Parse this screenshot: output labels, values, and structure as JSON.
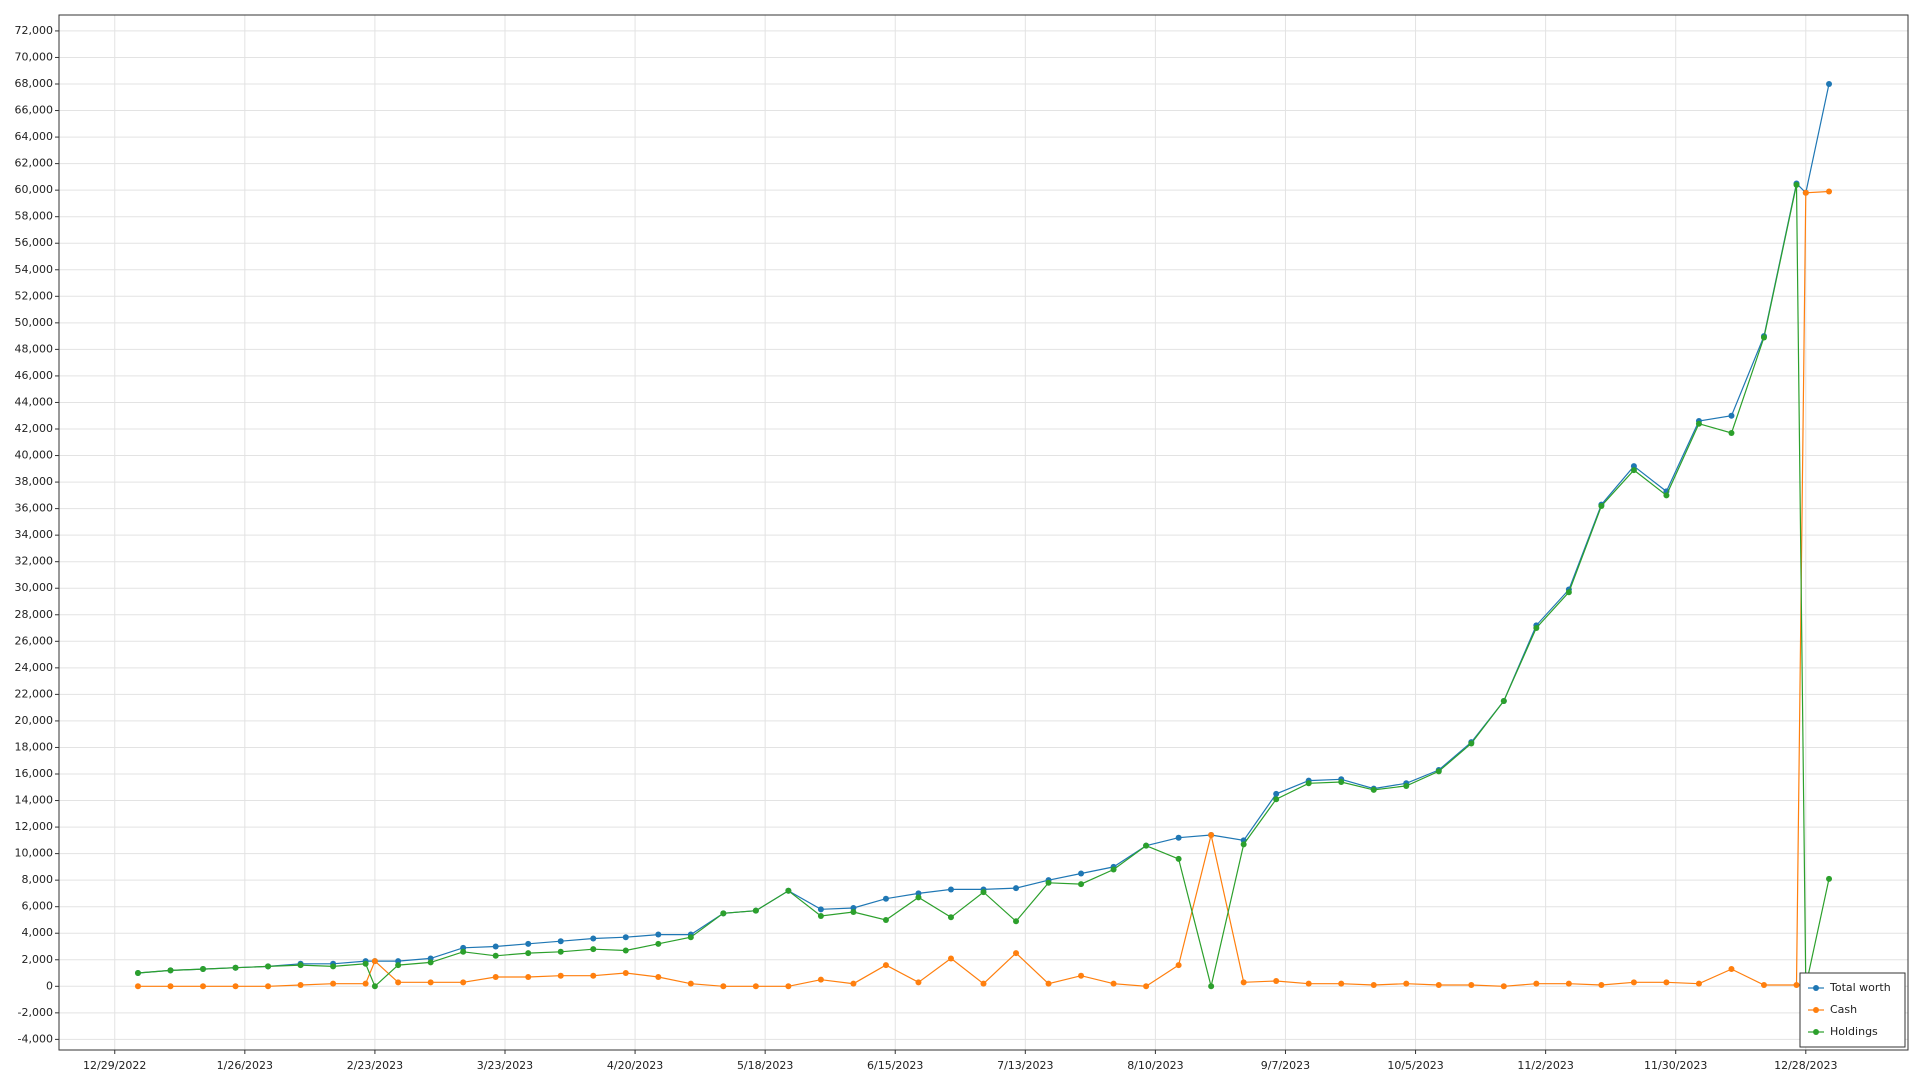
{
  "chart_data": {
    "type": "line",
    "x": [
      "1/3/2023",
      "1/10/2023",
      "1/17/2023",
      "1/24/2023",
      "1/31/2023",
      "2/7/2023",
      "2/14/2023",
      "2/21/2023",
      "2/23/2023",
      "2/28/2023",
      "3/7/2023",
      "3/14/2023",
      "3/21/2023",
      "3/28/2023",
      "4/4/2023",
      "4/11/2023",
      "4/18/2023",
      "4/25/2023",
      "5/2/2023",
      "5/9/2023",
      "5/16/2023",
      "5/23/2023",
      "5/30/2023",
      "6/6/2023",
      "6/13/2023",
      "6/20/2023",
      "6/27/2023",
      "7/4/2023",
      "7/11/2023",
      "7/18/2023",
      "7/25/2023",
      "8/1/2023",
      "8/8/2023",
      "8/15/2023",
      "8/22/2023",
      "8/29/2023",
      "9/5/2023",
      "9/12/2023",
      "9/19/2023",
      "9/26/2023",
      "10/3/2023",
      "10/10/2023",
      "10/17/2023",
      "10/24/2023",
      "10/31/2023",
      "11/7/2023",
      "11/14/2023",
      "11/21/2023",
      "11/28/2023",
      "12/5/2023",
      "12/12/2023",
      "12/19/2023",
      "12/26/2023",
      "12/28/2023",
      "1/2/2024"
    ],
    "series": [
      {
        "name": "Total worth",
        "color": "#1f77b4",
        "values": [
          1000,
          1200,
          1300,
          1400,
          1500,
          1700,
          1700,
          1900,
          1900,
          1900,
          2100,
          2900,
          3000,
          3200,
          3400,
          3600,
          3700,
          3900,
          3900,
          5500,
          5700,
          7200,
          5800,
          5900,
          6600,
          7000,
          7300,
          7300,
          7400,
          8000,
          8500,
          9000,
          10600,
          11200,
          11400,
          11000,
          14500,
          15500,
          15600,
          14900,
          15300,
          16300,
          18400,
          21500,
          27200,
          29900,
          36300,
          39200,
          37300,
          42600,
          43000,
          49000,
          60500,
          59800,
          68000
        ]
      },
      {
        "name": "Cash",
        "color": "#ff7f0e",
        "values": [
          0,
          0,
          0,
          0,
          0,
          100,
          200,
          200,
          1900,
          300,
          300,
          300,
          700,
          700,
          800,
          800,
          1000,
          700,
          200,
          0,
          0,
          0,
          500,
          200,
          1600,
          300,
          2100,
          200,
          2500,
          200,
          800,
          200,
          0,
          1600,
          11400,
          300,
          400,
          200,
          200,
          100,
          200,
          100,
          100,
          0,
          200,
          200,
          100,
          300,
          300,
          200,
          1300,
          100,
          100,
          59800,
          59900
        ]
      },
      {
        "name": "Holdings",
        "color": "#2ca02c",
        "values": [
          1000,
          1200,
          1300,
          1400,
          1500,
          1600,
          1500,
          1700,
          0,
          1600,
          1800,
          2600,
          2300,
          2500,
          2600,
          2800,
          2700,
          3200,
          3700,
          5500,
          5700,
          7200,
          5300,
          5600,
          5000,
          6700,
          5200,
          7100,
          4900,
          7800,
          7700,
          8800,
          10600,
          9600,
          0,
          10700,
          14100,
          15300,
          15400,
          14800,
          15100,
          16200,
          18300,
          21500,
          27000,
          29700,
          36200,
          38900,
          37000,
          42400,
          41700,
          48900,
          60400,
          0,
          8100
        ]
      }
    ],
    "xlim": [
      "12/17/2022",
      "1/19/2024"
    ],
    "xticks": [
      "12/29/2022",
      "1/26/2023",
      "2/23/2023",
      "3/23/2023",
      "4/20/2023",
      "5/18/2023",
      "6/15/2023",
      "7/13/2023",
      "8/10/2023",
      "9/7/2023",
      "10/5/2023",
      "11/2/2023",
      "11/30/2023",
      "12/28/2023"
    ],
    "ylim": [
      -4800,
      73200
    ],
    "yticks": [
      {
        "value": -4000,
        "label": "-4,000"
      },
      {
        "value": -2000,
        "label": "-2,000"
      },
      0,
      {
        "value": 2000,
        "label": "2,000"
      },
      {
        "value": 4000,
        "label": "4,000"
      },
      {
        "value": 6000,
        "label": "6,000"
      },
      {
        "value": 8000,
        "label": "8,000"
      },
      {
        "value": 10000,
        "label": "10,000"
      },
      {
        "value": 12000,
        "label": "12,000"
      },
      {
        "value": 14000,
        "label": "14,000"
      },
      {
        "value": 16000,
        "label": "16,000"
      },
      {
        "value": 18000,
        "label": "18,000"
      },
      {
        "value": 20000,
        "label": "20,000"
      },
      {
        "value": 22000,
        "label": "22,000"
      },
      {
        "value": 24000,
        "label": "24,000"
      },
      {
        "value": 26000,
        "label": "26,000"
      },
      {
        "value": 28000,
        "label": "28,000"
      },
      {
        "value": 30000,
        "label": "30,000"
      },
      {
        "value": 32000,
        "label": "32,000"
      },
      {
        "value": 34000,
        "label": "34,000"
      },
      {
        "value": 36000,
        "label": "36,000"
      },
      {
        "value": 38000,
        "label": "38,000"
      },
      {
        "value": 40000,
        "label": "40,000"
      },
      {
        "value": 42000,
        "label": "42,000"
      },
      {
        "value": 44000,
        "label": "44,000"
      },
      {
        "value": 46000,
        "label": "46,000"
      },
      {
        "value": 48000,
        "label": "48,000"
      },
      {
        "value": 50000,
        "label": "50,000"
      },
      {
        "value": 52000,
        "label": "52,000"
      },
      {
        "value": 54000,
        "label": "54,000"
      },
      {
        "value": 56000,
        "label": "56,000"
      },
      {
        "value": 58000,
        "label": "58,000"
      },
      {
        "value": 60000,
        "label": "60,000"
      },
      {
        "value": 62000,
        "label": "62,000"
      },
      {
        "value": 64000,
        "label": "64,000"
      },
      {
        "value": 66000,
        "label": "66,000"
      },
      {
        "value": 68000,
        "label": "68,000"
      },
      {
        "value": 70000,
        "label": "70,000"
      },
      {
        "value": 72000,
        "label": "72,000"
      }
    ],
    "grid": true,
    "legend": "lower right"
  }
}
